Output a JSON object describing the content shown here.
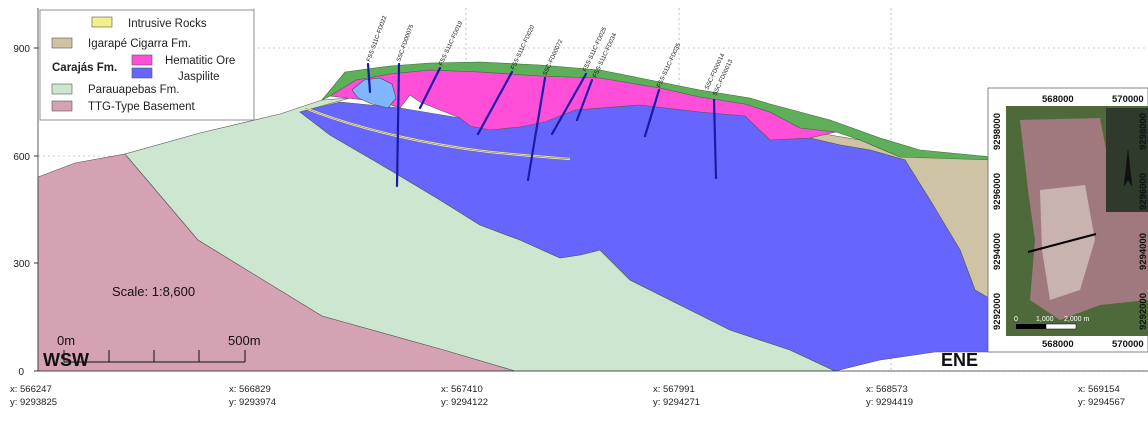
{
  "section": {
    "y_ticks": [
      "900",
      "600",
      "300",
      "0"
    ],
    "left_end": "WSW",
    "right_end": "ENE",
    "scale_label": "Scale: 1:8,600",
    "scale_start": "0m",
    "scale_end": "500m"
  },
  "legend": {
    "group_label": "Carajás Fm.",
    "items": [
      {
        "label": "Intrusive Rocks",
        "color": "#f2f08a"
      },
      {
        "label": "Igarapé Cigarra Fm.",
        "color": "#cfc3a6"
      },
      {
        "label": "Hematitic Ore",
        "color": "#ff4fd8"
      },
      {
        "label": "Jaspilite",
        "color": "#6666ff"
      },
      {
        "label": "Parauapebas Fm.",
        "color": "#cde6cf"
      },
      {
        "label": "TTG-Type Basement",
        "color": "#d4a2b3"
      }
    ]
  },
  "coordinates": [
    {
      "x": "x: 566247",
      "y": "y: 9293825"
    },
    {
      "x": "x: 566829",
      "y": "y: 9293974"
    },
    {
      "x": "x: 567410",
      "y": "y: 9294122"
    },
    {
      "x": "x: 567991",
      "y": "y: 9294271"
    },
    {
      "x": "x: 568573",
      "y": "y: 9294419"
    },
    {
      "x": "x: 569154",
      "y": "y: 9294567"
    }
  ],
  "drillholes": [
    "FSS-S11C-FD022",
    "SSC-FD00075",
    "FSS-S11C-FD019",
    "FSS-S11C-FD020",
    "SSC-FD00072",
    "FSS-S11C-FD025",
    "FSS-S11C-FD034",
    "FSS-S11C-FD035",
    "SSC-FD00014",
    "SSC-FD00013"
  ],
  "inset_map": {
    "top_ticks": [
      "568000",
      "570000"
    ],
    "bottom_ticks": [
      "568000",
      "570000"
    ],
    "left_ticks": [
      "9298000",
      "9296000",
      "9294000",
      "9292000"
    ],
    "right_ticks": [
      "9298000",
      "9296000",
      "9294000",
      "9292000"
    ],
    "scale_labels": [
      "0",
      "1,000",
      "2,000 m"
    ]
  },
  "colors": {
    "basement": "#d4a2b3",
    "parauapebas": "#cde6cf",
    "jaspilite": "#6666ff",
    "hematite": "#ff4fd8",
    "cigarra": "#cfc3a6",
    "intrusive": "#f2f08a",
    "soil_green": "#5fae5a",
    "lens_blue": "#7fb6ff",
    "drillhole": "#1a1aa8"
  }
}
